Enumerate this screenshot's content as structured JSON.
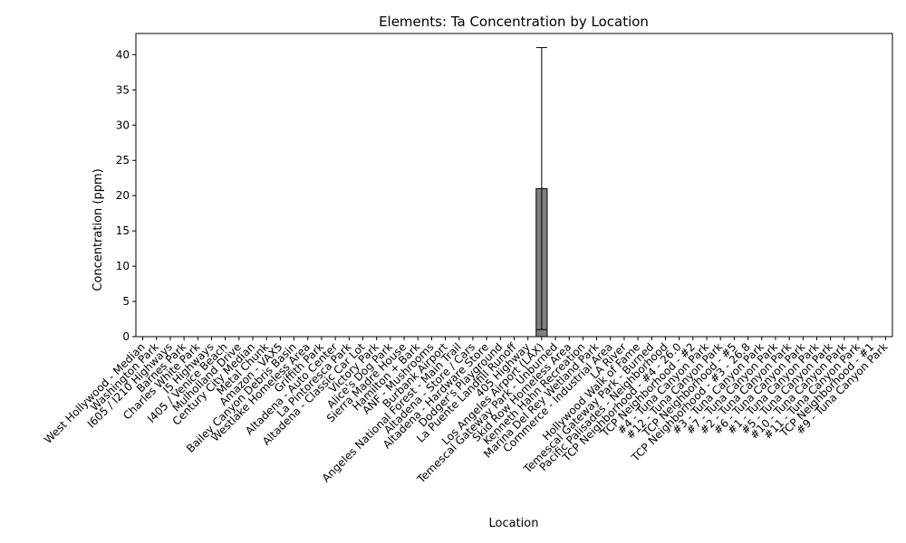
{
  "chart_data": {
    "type": "bar",
    "title": "Elements: Ta Concentration by Location",
    "xlabel": "Location",
    "ylabel": "Concentration (ppm)",
    "ylim": [
      0,
      43
    ],
    "yticks": [
      0,
      5,
      10,
      15,
      20,
      25,
      30,
      35,
      40
    ],
    "grid": false,
    "legend": "none",
    "bar_color": "#7f7f7f",
    "bar_edge_color": "#000000",
    "categories": [
      "West Hollywood - Median",
      "Washington Park",
      "I605 / I210 Highways",
      "Barnes Park",
      "Charles White Park",
      "I5 Highways",
      "I405 / Venice Beach",
      "Mulholland Drive",
      "Century City Median",
      "Metal Chunk",
      "Amazon - VAX5",
      "Bailey Canyon Debris Basin",
      "Westlake Homeless Area",
      "Griffith Park",
      "Altadena - Auto Center",
      "La Pintoresca Park",
      "Altadena - Classic Car Lot",
      "Victory Park",
      "Alice's Dog Park",
      "Sierra Madre House",
      "Hamilton + Bark",
      "ANF - Mushrooms",
      "Burbank Airport",
      "Angeles National Forest - Main Trail",
      "Altadena - Store / Cars",
      "Altadena - Hardware Store",
      "Dodger's Playground",
      "La Puente Landfill Runoff",
      "405 Highway",
      "Los Angeles Airport (LAX)",
      "Temescal Gateway Park - Unburned",
      "Skid Row Homeless Area",
      "Kenneth Hahn Recreation",
      "Marina Del Rey Wetland Park",
      "Commerce - Industrial Area",
      "LA River",
      "Hollywood Walk of Fame",
      "Temescal Gateway Park - Burned",
      "Pacific Palisades - Neighborhood",
      "TCP Neighborhood - #4 - 26.0",
      "TCP Neighborhood - #2",
      "#4 - Tuna Canyon Park",
      "#12 - Tuna Canyon Park",
      "TCP Neighborhood - #5",
      "TCP Neighborhood - #3 - 26.8",
      "#3 - Tuna Canyon Park",
      "#7 - Tuna Canyon Park",
      "#2 - Tuna Canyon Park",
      "#6 - Tuna Canyon Park",
      "#1 - Tuna Canyon Park",
      "#5 - Tuna Canyon Park",
      "#10 - Tuna Canyon Park",
      "#11 - Tuna Canyon Park",
      "TCP Neighborhood - #1",
      "#9 - Tuna Canyon Park"
    ],
    "values": [
      0,
      0,
      0,
      0,
      0,
      0,
      0,
      0,
      0,
      0,
      0,
      0,
      0,
      0,
      0,
      0,
      0,
      0,
      0,
      0,
      0,
      0,
      0,
      0,
      0,
      0,
      0,
      0,
      0,
      21,
      0,
      0,
      0,
      0,
      0,
      0,
      0,
      0,
      0,
      0,
      0,
      0,
      0,
      0,
      0,
      0,
      0,
      0,
      0,
      0,
      0,
      0,
      0,
      0,
      0
    ],
    "error_bars": [
      {
        "category": "Los Angeles Airport (LAX)",
        "low": 1,
        "high": 41
      }
    ]
  }
}
